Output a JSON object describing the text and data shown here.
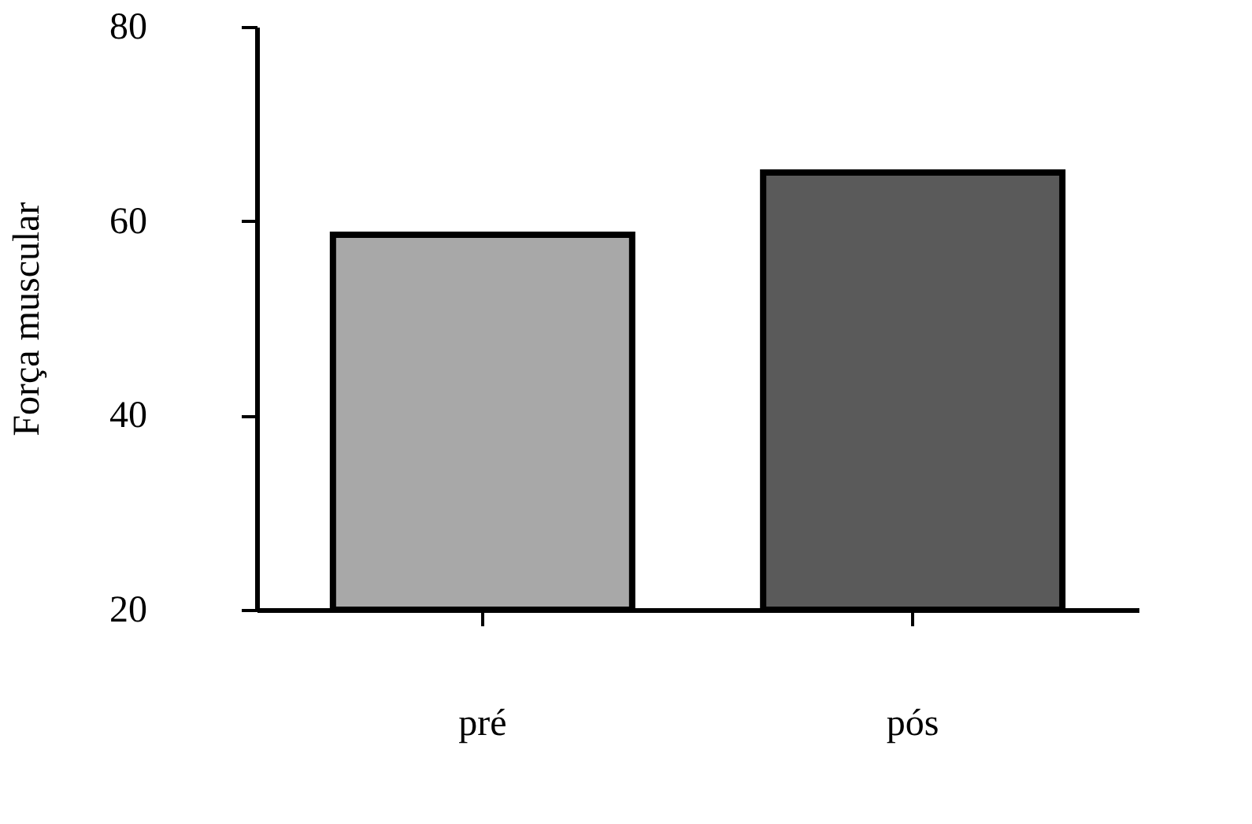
{
  "chart_data": {
    "type": "bar",
    "ylabel": "Força muscular",
    "categories": [
      "pré",
      "pós"
    ],
    "values": [
      58.6,
      65
    ],
    "colors": [
      "#a8a8a8",
      "#5a5a5a"
    ],
    "ylim": [
      20,
      80
    ],
    "yticks": [
      20,
      40,
      60,
      80
    ],
    "grid": false
  }
}
